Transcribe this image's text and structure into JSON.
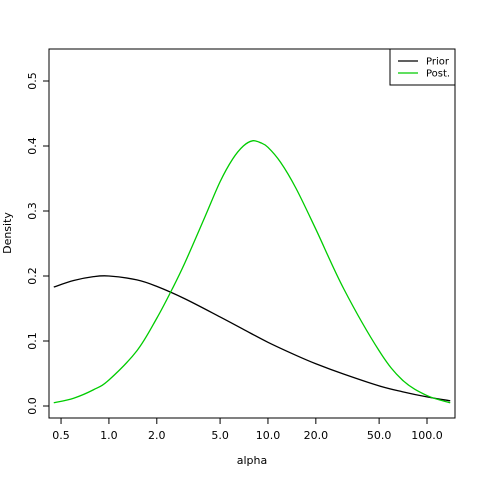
{
  "chart_data": {
    "type": "line",
    "xlabel": "alpha",
    "ylabel": "Density",
    "x_scale": "log",
    "xlim": [
      0.42,
      150
    ],
    "ylim": [
      0.0,
      0.5
    ],
    "x_ticks": [
      0.5,
      1.0,
      2.0,
      5.0,
      10.0,
      20.0,
      50.0,
      100.0
    ],
    "x_tick_labels": [
      "0.5",
      "1.0",
      "2.0",
      "5.0",
      "10.0",
      "20.0",
      "50.0",
      "100.0"
    ],
    "y_ticks": [
      0.0,
      0.1,
      0.2,
      0.3,
      0.4,
      0.5
    ],
    "y_tick_labels": [
      "0.0",
      "0.1",
      "0.2",
      "0.3",
      "0.4",
      "0.5"
    ],
    "grid": false,
    "legend_position": "top-right",
    "series": [
      {
        "name": "Prior",
        "color": "#000000",
        "x": [
          0.45,
          0.6,
          0.8,
          1.0,
          1.5,
          2.0,
          3.0,
          5.0,
          7.0,
          10.0,
          15.0,
          20.0,
          30.0,
          50.0,
          70.0,
          100.0,
          140.0
        ],
        "y": [
          0.183,
          0.193,
          0.199,
          0.2,
          0.194,
          0.184,
          0.165,
          0.137,
          0.118,
          0.098,
          0.078,
          0.065,
          0.049,
          0.031,
          0.022,
          0.014,
          0.008
        ]
      },
      {
        "name": "Post.",
        "color": "#00cc00",
        "x": [
          0.45,
          0.6,
          0.8,
          1.0,
          1.5,
          2.0,
          2.5,
          3.0,
          4.0,
          5.0,
          6.0,
          7.0,
          8.0,
          9.0,
          10.0,
          12.0,
          15.0,
          20.0,
          30.0,
          50.0,
          70.0,
          100.0,
          140.0
        ],
        "y": [
          0.005,
          0.012,
          0.025,
          0.04,
          0.085,
          0.135,
          0.18,
          0.22,
          0.29,
          0.345,
          0.38,
          0.4,
          0.408,
          0.405,
          0.398,
          0.375,
          0.335,
          0.272,
          0.18,
          0.085,
          0.04,
          0.016,
          0.005
        ]
      }
    ]
  }
}
